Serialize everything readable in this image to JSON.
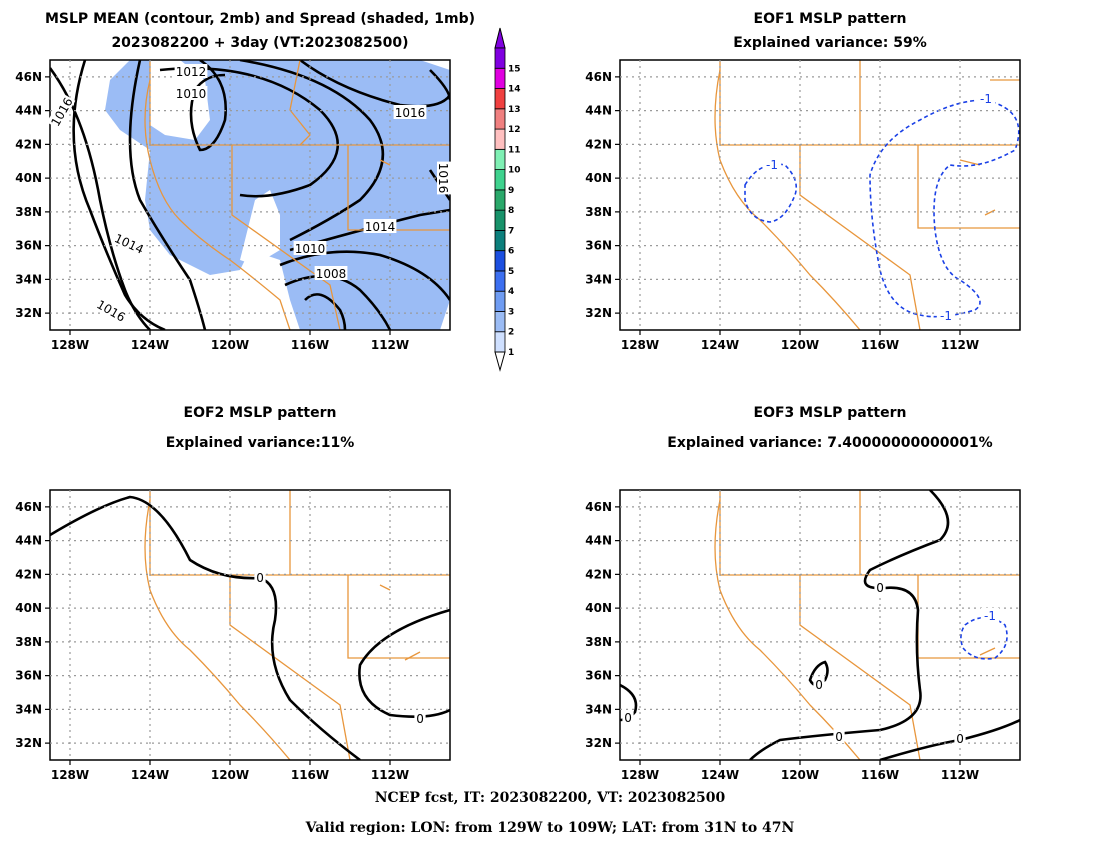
{
  "titles": {
    "p1_line1": "MSLP MEAN (contour, 2mb) and Spread (shaded, 1mb)",
    "p1_line2": "2023082200 + 3day (VT:2023082500)",
    "p2_line1": "EOF1 MSLP pattern",
    "p2_line2": "Explained variance: 59%",
    "p3_line1": "EOF2 MSLP pattern",
    "p3_line2": "Explained variance:11%",
    "p4_line1": "EOF3 MSLP pattern",
    "p4_line2": "Explained variance: 7.40000000000001%"
  },
  "footer": {
    "line1": "NCEP fcst, IT: 2023082200, VT: 2023082500",
    "line2": "Valid region: LON: from 129W to 109W; LAT: from 31N to 47N"
  },
  "chart_data": [
    {
      "type": "contour",
      "title": "MSLP MEAN (contour, 2mb) and Spread (shaded, 1mb)",
      "subtitle": "2023082200 + 3day (VT:2023082500)",
      "xlim": [
        -129,
        -109
      ],
      "ylim": [
        31,
        47
      ],
      "x_ticks": [
        "128W",
        "124W",
        "120W",
        "116W",
        "112W"
      ],
      "y_ticks": [
        "32N",
        "34N",
        "36N",
        "38N",
        "40N",
        "42N",
        "44N",
        "46N"
      ],
      "contour_labels": [
        "1016",
        "1012",
        "1010",
        "1016",
        "1016",
        "1014",
        "1014",
        "1010",
        "1008",
        "1016"
      ],
      "shading_color": "#9bbcf5",
      "colorbar_levels": [
        "1",
        "2",
        "3",
        "4",
        "5",
        "6",
        "7",
        "8",
        "9",
        "10",
        "11",
        "12",
        "13",
        "14",
        "15"
      ],
      "colorbar_colors": [
        "#cfe0ff",
        "#9bbcf5",
        "#6f9cf2",
        "#3c6ff0",
        "#1c4fe0",
        "#0c7f7c",
        "#18926a",
        "#2aa86a",
        "#3fd28e",
        "#7ff0b4",
        "#ffc0c0",
        "#f08080",
        "#f04040",
        "#e000e0",
        "#8000e0"
      ],
      "grid": true
    },
    {
      "type": "contour",
      "title": "EOF1 MSLP pattern",
      "subtitle": "Explained variance: 59%",
      "explained_variance": 59,
      "xlim": [
        -129,
        -109
      ],
      "ylim": [
        31,
        47
      ],
      "x_ticks": [
        "128W",
        "124W",
        "120W",
        "116W",
        "112W"
      ],
      "y_ticks": [
        "32N",
        "34N",
        "36N",
        "38N",
        "40N",
        "42N",
        "44N",
        "46N"
      ],
      "contour_labels": [
        "-1",
        "-1",
        "-1"
      ],
      "grid": true
    },
    {
      "type": "contour",
      "title": "EOF2 MSLP pattern",
      "subtitle": "Explained variance:11%",
      "explained_variance": 11,
      "xlim": [
        -129,
        -109
      ],
      "ylim": [
        31,
        47
      ],
      "x_ticks": [
        "128W",
        "124W",
        "120W",
        "116W",
        "112W"
      ],
      "y_ticks": [
        "32N",
        "34N",
        "36N",
        "38N",
        "40N",
        "42N",
        "44N",
        "46N"
      ],
      "contour_labels": [
        "0",
        "0"
      ],
      "grid": true
    },
    {
      "type": "contour",
      "title": "EOF3 MSLP pattern",
      "subtitle": "Explained variance: 7.40000000000001%",
      "explained_variance": 7.40000000000001,
      "xlim": [
        -129,
        -109
      ],
      "ylim": [
        31,
        47
      ],
      "x_ticks": [
        "128W",
        "124W",
        "120W",
        "116W",
        "112W"
      ],
      "y_ticks": [
        "32N",
        "34N",
        "36N",
        "38N",
        "40N",
        "42N",
        "44N",
        "46N"
      ],
      "contour_labels": [
        "0",
        "0",
        "0",
        "0",
        "0",
        "-1"
      ],
      "grid": true
    }
  ]
}
